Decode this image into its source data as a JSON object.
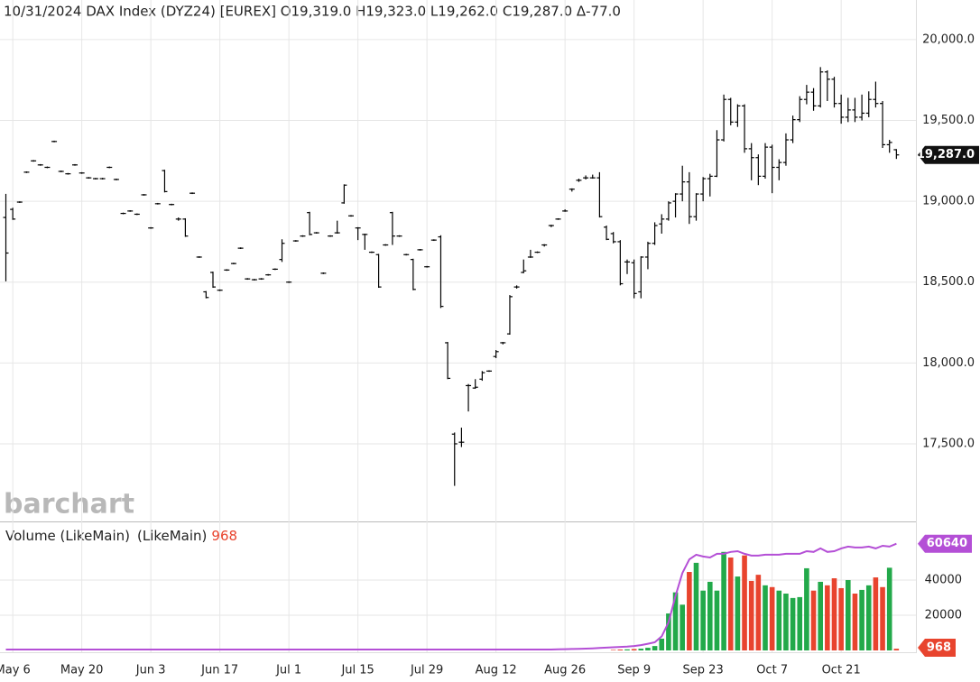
{
  "chart_data": [
    {
      "type": "ohlc",
      "title": "10/31/2024 DAX Index (DYZ24) [EUREX] O19,319.0 H19,323.0 L19,262.0 C19,287.0 Δ-77.0",
      "watermark": "barchart",
      "color": "#000000",
      "categories": [
        null,
        "May 6",
        null,
        null,
        null,
        null,
        null,
        null,
        null,
        null,
        null,
        "May 20",
        null,
        null,
        null,
        null,
        null,
        null,
        null,
        null,
        null,
        "Jun 3",
        null,
        null,
        null,
        null,
        null,
        null,
        null,
        null,
        null,
        "Jun 17",
        null,
        null,
        null,
        null,
        null,
        null,
        null,
        null,
        null,
        "Jul 1",
        null,
        null,
        null,
        null,
        null,
        null,
        null,
        null,
        null,
        "Jul 15",
        null,
        null,
        null,
        null,
        null,
        null,
        null,
        null,
        null,
        "Jul 29",
        null,
        null,
        null,
        null,
        null,
        null,
        null,
        null,
        null,
        "Aug 12",
        null,
        null,
        null,
        null,
        null,
        null,
        null,
        null,
        null,
        "Aug 26",
        null,
        null,
        null,
        null,
        null,
        null,
        null,
        null,
        null,
        "Sep 9",
        null,
        null,
        null,
        null,
        null,
        null,
        null,
        null,
        null,
        "Sep 23",
        null,
        null,
        null,
        null,
        null,
        null,
        null,
        null,
        null,
        "Oct 7",
        null,
        null,
        null,
        null,
        null,
        null,
        null,
        null,
        null,
        "Oct 21",
        null,
        null,
        null,
        null,
        null,
        null,
        null,
        null
      ],
      "ohlc": [
        [
          18900,
          19046,
          18505,
          18680
        ],
        [
          18950,
          18960,
          18885,
          18890
        ],
        [
          18995,
          19000,
          18990,
          18995
        ],
        [
          19180,
          19185,
          19175,
          19180
        ],
        [
          19250,
          19255,
          19245,
          19250
        ],
        [
          19225,
          19230,
          19220,
          19225
        ],
        [
          19210,
          19215,
          19205,
          19210
        ],
        [
          19370,
          19375,
          19365,
          19370
        ],
        [
          19185,
          19190,
          19180,
          19185
        ],
        [
          19170,
          19175,
          19165,
          19170
        ],
        [
          19225,
          19230,
          19220,
          19225
        ],
        [
          19175,
          19180,
          19170,
          19175
        ],
        [
          19145,
          19150,
          19140,
          19145
        ],
        [
          19140,
          19145,
          19135,
          19140
        ],
        [
          19140,
          19145,
          19135,
          19140
        ],
        [
          19210,
          19215,
          19205,
          19210
        ],
        [
          19135,
          19140,
          19130,
          19135
        ],
        [
          18925,
          18930,
          18920,
          18925
        ],
        [
          18940,
          18945,
          18935,
          18940
        ],
        [
          18920,
          18925,
          18915,
          18920
        ],
        [
          19040,
          19045,
          19035,
          19040
        ],
        [
          18835,
          18840,
          18830,
          18835
        ],
        [
          18985,
          18990,
          18980,
          18985
        ],
        [
          19190,
          19195,
          19055,
          19060
        ],
        [
          18980,
          18985,
          18975,
          18980
        ],
        [
          18890,
          18900,
          18880,
          18890
        ],
        [
          18890,
          18895,
          18780,
          18785
        ],
        [
          19050,
          19055,
          19045,
          19050
        ],
        [
          18655,
          18660,
          18650,
          18655
        ],
        [
          18440,
          18445,
          18400,
          18405
        ],
        [
          18560,
          18565,
          18465,
          18470
        ],
        [
          18450,
          18455,
          18445,
          18450
        ],
        [
          18575,
          18580,
          18570,
          18575
        ],
        [
          18615,
          18620,
          18610,
          18615
        ],
        [
          18710,
          18715,
          18705,
          18710
        ],
        [
          18520,
          18525,
          18515,
          18520
        ],
        [
          18515,
          18520,
          18510,
          18515
        ],
        [
          18520,
          18525,
          18515,
          18520
        ],
        [
          18545,
          18550,
          18540,
          18545
        ],
        [
          18580,
          18585,
          18575,
          18580
        ],
        [
          18640,
          18765,
          18625,
          18740
        ],
        [
          18500,
          18505,
          18495,
          18500
        ],
        [
          18755,
          18760,
          18750,
          18755
        ],
        [
          18785,
          18790,
          18780,
          18785
        ],
        [
          18930,
          18935,
          18790,
          18795
        ],
        [
          18805,
          18810,
          18800,
          18805
        ],
        [
          18555,
          18560,
          18550,
          18555
        ],
        [
          18785,
          18790,
          18780,
          18785
        ],
        [
          18805,
          18880,
          18800,
          18805
        ],
        [
          18990,
          19105,
          18985,
          19100
        ],
        [
          18910,
          18915,
          18905,
          18910
        ],
        [
          18835,
          18840,
          18760,
          18835
        ],
        [
          18795,
          18800,
          18700,
          18795
        ],
        [
          18685,
          18690,
          18680,
          18685
        ],
        [
          18670,
          18675,
          18465,
          18470
        ],
        [
          18730,
          18735,
          18725,
          18730
        ],
        [
          18930,
          18935,
          18730,
          18785
        ],
        [
          18785,
          18790,
          18780,
          18785
        ],
        [
          18670,
          18675,
          18665,
          18670
        ],
        [
          18640,
          18645,
          18450,
          18455
        ],
        [
          18700,
          18705,
          18695,
          18700
        ],
        [
          18595,
          18600,
          18590,
          18595
        ],
        [
          18760,
          18765,
          18755,
          18760
        ],
        [
          18780,
          18790,
          18340,
          18350
        ],
        [
          18125,
          18130,
          17900,
          17905
        ],
        [
          17560,
          17570,
          17240,
          17500
        ],
        [
          17510,
          17600,
          17480,
          17510
        ],
        [
          17860,
          17870,
          17700,
          17860
        ],
        [
          17845,
          17900,
          17840,
          17850
        ],
        [
          17900,
          17950,
          17890,
          17940
        ],
        [
          17950,
          17955,
          17945,
          17950
        ],
        [
          18040,
          18080,
          18030,
          18070
        ],
        [
          18125,
          18130,
          18115,
          18125
        ],
        [
          18180,
          18420,
          18175,
          18410
        ],
        [
          18470,
          18480,
          18460,
          18470
        ],
        [
          18560,
          18640,
          18555,
          18570
        ],
        [
          18655,
          18700,
          18650,
          18655
        ],
        [
          18685,
          18690,
          18680,
          18685
        ],
        [
          18730,
          18735,
          18720,
          18730
        ],
        [
          18850,
          18855,
          18840,
          18850
        ],
        [
          18890,
          18895,
          18885,
          18890
        ],
        [
          18940,
          18950,
          18935,
          18940
        ],
        [
          19075,
          19080,
          19060,
          19075
        ],
        [
          19130,
          19140,
          19120,
          19130
        ],
        [
          19145,
          19160,
          19135,
          19145
        ],
        [
          19145,
          19165,
          19140,
          19145
        ],
        [
          19145,
          19180,
          18900,
          18905
        ],
        [
          18840,
          18850,
          18760,
          18765
        ],
        [
          18800,
          18810,
          18740,
          18750
        ],
        [
          18750,
          18760,
          18480,
          18490
        ],
        [
          18625,
          18640,
          18550,
          18625
        ],
        [
          18620,
          18640,
          18400,
          18430
        ],
        [
          18440,
          18660,
          18400,
          18655
        ],
        [
          18655,
          18750,
          18580,
          18740
        ],
        [
          18740,
          18870,
          18730,
          18850
        ],
        [
          18860,
          18920,
          18800,
          18890
        ],
        [
          18890,
          19000,
          18880,
          18990
        ],
        [
          19000,
          19050,
          18900,
          19045
        ],
        [
          19045,
          19220,
          19000,
          19120
        ],
        [
          19120,
          19180,
          18860,
          18905
        ],
        [
          18905,
          19050,
          18880,
          19045
        ],
        [
          19045,
          19150,
          19000,
          19140
        ],
        [
          19140,
          19170,
          19030,
          19155
        ],
        [
          19155,
          19440,
          19150,
          19380
        ],
        [
          19380,
          19660,
          19370,
          19630
        ],
        [
          19630,
          19640,
          19470,
          19490
        ],
        [
          19490,
          19600,
          19460,
          19590
        ],
        [
          19590,
          19600,
          19300,
          19325
        ],
        [
          19325,
          19360,
          19130,
          19270
        ],
        [
          19270,
          19290,
          19100,
          19155
        ],
        [
          19155,
          19360,
          19140,
          19335
        ],
        [
          19335,
          19350,
          19050,
          19210
        ],
        [
          19210,
          19260,
          19130,
          19240
        ],
        [
          19240,
          19420,
          19220,
          19380
        ],
        [
          19380,
          19530,
          19360,
          19505
        ],
        [
          19505,
          19650,
          19490,
          19630
        ],
        [
          19630,
          19720,
          19600,
          19675
        ],
        [
          19675,
          19700,
          19560,
          19590
        ],
        [
          19590,
          19830,
          19580,
          19800
        ],
        [
          19800,
          19810,
          19620,
          19755
        ],
        [
          19755,
          19770,
          19580,
          19605
        ],
        [
          19605,
          19660,
          19480,
          19520
        ],
        [
          19520,
          19640,
          19490,
          19565
        ],
        [
          19565,
          19640,
          19490,
          19520
        ],
        [
          19520,
          19660,
          19500,
          19545
        ],
        [
          19545,
          19680,
          19520,
          19630
        ],
        [
          19630,
          19740,
          19580,
          19605
        ],
        [
          19605,
          19620,
          19330,
          19350
        ],
        [
          19350,
          19380,
          19300,
          19364
        ],
        [
          19319,
          19323,
          19262,
          19287
        ]
      ],
      "last_label": "19,287.0",
      "ylim": [
        17020,
        20245
      ],
      "yticks": [
        {
          "value": 17500,
          "label": "17,500.0"
        },
        {
          "value": 18000,
          "label": "18,000.0"
        },
        {
          "value": 18500,
          "label": "18,500.0"
        },
        {
          "value": 19000,
          "label": "19,000.0"
        },
        {
          "value": 19500,
          "label": "19,500.0"
        },
        {
          "value": 20000,
          "label": "20,000.0"
        }
      ],
      "grid": true
    },
    {
      "type": "bar",
      "up_color": "#22a94a",
      "down_color": "#e8442e",
      "series": [
        {
          "name": "Volume (LikeMain)",
          "values": [
            0,
            0,
            0,
            0,
            0,
            0,
            0,
            0,
            0,
            0,
            0,
            0,
            0,
            0,
            0,
            0,
            0,
            0,
            0,
            0,
            0,
            0,
            0,
            0,
            0,
            0,
            0,
            0,
            0,
            0,
            0,
            0,
            0,
            0,
            0,
            0,
            0,
            0,
            0,
            0,
            0,
            0,
            0,
            0,
            0,
            0,
            0,
            0,
            0,
            0,
            0,
            0,
            0,
            0,
            0,
            0,
            0,
            0,
            0,
            0,
            0,
            0,
            0,
            0,
            0,
            0,
            0,
            0,
            0,
            0,
            0,
            0,
            0,
            0,
            0,
            0,
            0,
            0,
            0,
            0,
            0,
            0,
            0,
            0,
            0,
            0,
            0,
            0,
            300,
            500,
            600,
            800,
            1000,
            1500,
            2500,
            6700,
            21000,
            33000,
            26000,
            44600,
            49800,
            34000,
            39000,
            34000,
            56000,
            52800,
            42000,
            54000,
            39500,
            43000,
            37000,
            36000,
            34000,
            32300,
            29800,
            30300,
            46700,
            34000,
            39000,
            37000,
            41000,
            35400,
            40000,
            32300,
            34400,
            37000,
            41500,
            36000,
            47000,
            968
          ]
        },
        {
          "name": "(LikeMain)",
          "color": "#b44fd6",
          "values": [
            500,
            500,
            500,
            500,
            500,
            500,
            500,
            500,
            500,
            500,
            500,
            500,
            500,
            500,
            500,
            500,
            500,
            500,
            500,
            500,
            500,
            500,
            500,
            500,
            500,
            500,
            500,
            500,
            500,
            500,
            500,
            500,
            500,
            500,
            500,
            500,
            500,
            500,
            500,
            500,
            500,
            500,
            500,
            500,
            500,
            500,
            500,
            500,
            500,
            500,
            500,
            500,
            500,
            500,
            500,
            500,
            500,
            500,
            500,
            500,
            500,
            500,
            500,
            500,
            500,
            500,
            500,
            500,
            500,
            500,
            500,
            500,
            500,
            500,
            500,
            500,
            500,
            500,
            500,
            500,
            600,
            700,
            800,
            900,
            1000,
            1200,
            1400,
            1600,
            1800,
            2000,
            2200,
            2500,
            3000,
            3800,
            4600,
            8000,
            16000,
            31000,
            44000,
            51800,
            54400,
            53400,
            52800,
            54900,
            54900,
            56000,
            56400,
            54900,
            53900,
            53900,
            54400,
            54400,
            54400,
            54900,
            54900,
            54900,
            56400,
            56000,
            58000,
            56000,
            56400,
            58000,
            59000,
            58500,
            58500,
            59000,
            58000,
            59500,
            59000,
            60640
          ]
        }
      ],
      "ylim": [
        0,
        72300
      ],
      "yticks": [
        20000,
        40000
      ],
      "grid": true
    }
  ]
}
